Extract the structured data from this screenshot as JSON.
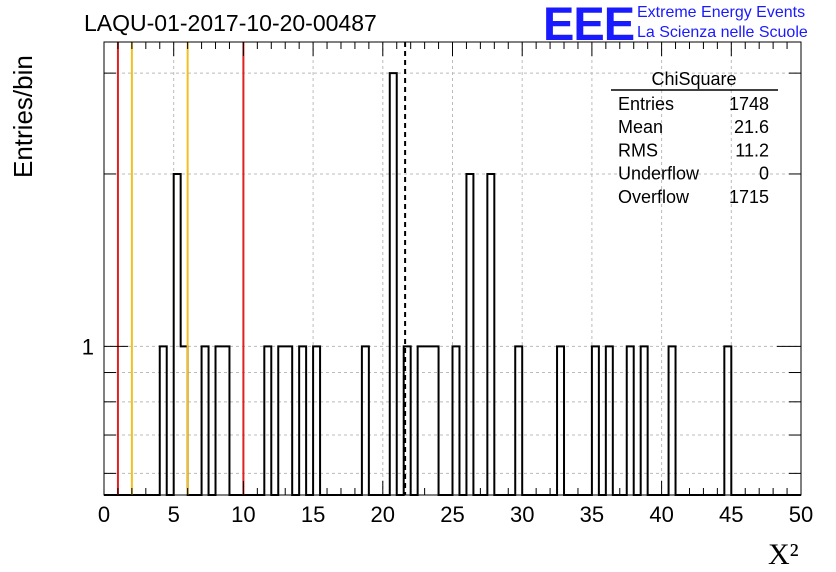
{
  "header": {
    "title": "LAQU-01-2017-10-20-00487",
    "logo_text": "EEE",
    "logo_line1": "Extreme Energy Events",
    "logo_line2": "La Scienza nelle Scuole"
  },
  "stats_box": {
    "name": "ChiSquare",
    "rows": [
      {
        "label": "Entries",
        "value": "1748"
      },
      {
        "label": "Mean",
        "value": "21.6"
      },
      {
        "label": "RMS",
        "value": "11.2"
      },
      {
        "label": "Underflow",
        "value": "0"
      },
      {
        "label": "Overflow",
        "value": "1715"
      }
    ]
  },
  "colors": {
    "red_line": "#e02020",
    "yellow_line": "#f0c020",
    "logo_blue": "#1a1aff"
  },
  "chart_data": {
    "type": "bar",
    "xlabel": "X²",
    "ylabel": "Entries/bin",
    "xlim": [
      0,
      50
    ],
    "ylim": [
      0.55,
      3.4
    ],
    "log_y": true,
    "grid": true,
    "bin_width": 0.5,
    "x_ticks": [
      0,
      5,
      10,
      15,
      20,
      25,
      30,
      35,
      40,
      45,
      50
    ],
    "y_tick_labels": [
      {
        "value": 1,
        "label": "1"
      }
    ],
    "bins": [
      {
        "x": 4.0,
        "y": 1
      },
      {
        "x": 5.0,
        "y": 2
      },
      {
        "x": 5.5,
        "y": 1
      },
      {
        "x": 7.0,
        "y": 1
      },
      {
        "x": 8.0,
        "y": 1
      },
      {
        "x": 8.5,
        "y": 1
      },
      {
        "x": 11.5,
        "y": 1
      },
      {
        "x": 12.5,
        "y": 1
      },
      {
        "x": 13.0,
        "y": 1
      },
      {
        "x": 14.0,
        "y": 1
      },
      {
        "x": 15.0,
        "y": 1
      },
      {
        "x": 18.5,
        "y": 1
      },
      {
        "x": 20.5,
        "y": 3
      },
      {
        "x": 21.5,
        "y": 1
      },
      {
        "x": 22.5,
        "y": 1
      },
      {
        "x": 23.0,
        "y": 1
      },
      {
        "x": 23.5,
        "y": 1
      },
      {
        "x": 25.0,
        "y": 1
      },
      {
        "x": 26.0,
        "y": 2
      },
      {
        "x": 27.5,
        "y": 2
      },
      {
        "x": 29.5,
        "y": 1
      },
      {
        "x": 32.5,
        "y": 1
      },
      {
        "x": 35.0,
        "y": 1
      },
      {
        "x": 36.0,
        "y": 1
      },
      {
        "x": 37.5,
        "y": 1
      },
      {
        "x": 38.5,
        "y": 1
      },
      {
        "x": 40.5,
        "y": 1
      },
      {
        "x": 44.5,
        "y": 1
      }
    ],
    "vertical_lines": [
      {
        "x": 1.0,
        "color": "red",
        "style": "solid"
      },
      {
        "x": 2.0,
        "color": "yellow",
        "style": "solid"
      },
      {
        "x": 6.0,
        "color": "yellow",
        "style": "solid"
      },
      {
        "x": 10.0,
        "color": "red",
        "style": "solid"
      },
      {
        "x": 21.6,
        "color": "black",
        "style": "dashed"
      }
    ]
  }
}
